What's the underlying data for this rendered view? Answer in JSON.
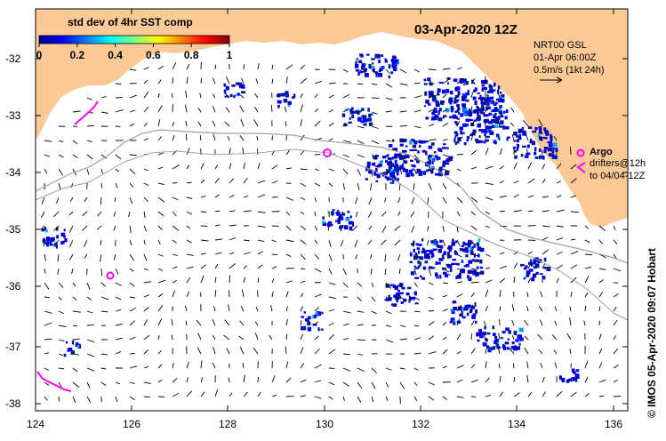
{
  "map": {
    "date_title": "03-Apr-2020 12Z",
    "colorbar": {
      "title": "std dev of 4hr SST comp",
      "ticks": [
        "0",
        "0.2",
        "0.4",
        "0.6",
        "0.8",
        "1"
      ]
    },
    "current_info": {
      "line1": "NRT00 GSL",
      "line2": "01-Apr 06:00Z",
      "line3": "0.5m/s (1kt 24h)"
    },
    "argo_label": "Argo",
    "drifters_line1": "drifters@12h",
    "drifters_line2": "to 04/04-12Z",
    "credit": "© IMOS 05-Apr-2020 09:07 Hobart",
    "lat_labels": [
      "-32",
      "-33",
      "-34",
      "-35",
      "-36",
      "-37",
      "-38"
    ],
    "lon_labels": [
      "124",
      "126",
      "128",
      "130",
      "132",
      "134",
      "136"
    ],
    "colors": {
      "land": "#fbc996",
      "argo": "#ff00ff",
      "track": "#a0a0a0"
    }
  }
}
